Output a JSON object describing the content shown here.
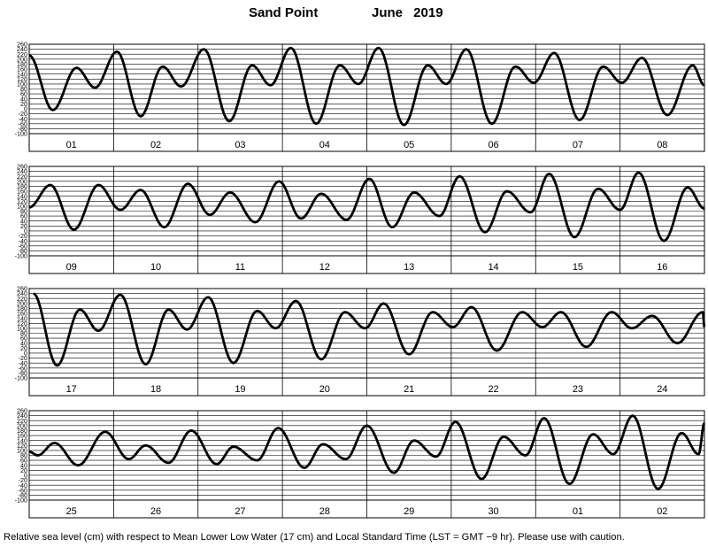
{
  "header": {
    "station": "Sand Point",
    "month_year": "June   2019"
  },
  "footer": {
    "caption": "Relative sea level (cm) with respect to Mean Lower Low Water (17 cm) and Local Standard Time (LST = GMT −9 hr). Please use with caution."
  },
  "chart_data": {
    "type": "line",
    "title": "Sand Point June 2019",
    "ylabel": "Relative sea level (cm)",
    "ylim": [
      -100,
      260
    ],
    "yticks": [
      260,
      240,
      220,
      200,
      180,
      160,
      140,
      120,
      100,
      80,
      60,
      40,
      20,
      0,
      -20,
      -40,
      -60,
      -80,
      -100
    ],
    "grid": true,
    "series_color": "#000000",
    "panels": [
      {
        "days": [
          "01",
          "02",
          "03",
          "04",
          "05",
          "06",
          "07",
          "08"
        ],
        "extremes": [
          {
            "day": 0.0,
            "value": 215
          },
          {
            "day": 0.28,
            "value": -5
          },
          {
            "day": 0.56,
            "value": 165
          },
          {
            "day": 0.78,
            "value": 85
          },
          {
            "day": 1.04,
            "value": 230
          },
          {
            "day": 1.32,
            "value": -30
          },
          {
            "day": 1.58,
            "value": 170
          },
          {
            "day": 1.8,
            "value": 90
          },
          {
            "day": 2.07,
            "value": 240
          },
          {
            "day": 2.37,
            "value": -50
          },
          {
            "day": 2.64,
            "value": 175
          },
          {
            "day": 2.86,
            "value": 95
          },
          {
            "day": 3.1,
            "value": 245
          },
          {
            "day": 3.4,
            "value": -60
          },
          {
            "day": 3.68,
            "value": 175
          },
          {
            "day": 3.9,
            "value": 100
          },
          {
            "day": 4.14,
            "value": 245
          },
          {
            "day": 4.44,
            "value": -65
          },
          {
            "day": 4.72,
            "value": 175
          },
          {
            "day": 4.94,
            "value": 100
          },
          {
            "day": 5.18,
            "value": 240
          },
          {
            "day": 5.48,
            "value": -60
          },
          {
            "day": 5.76,
            "value": 170
          },
          {
            "day": 5.98,
            "value": 105
          },
          {
            "day": 6.22,
            "value": 225
          },
          {
            "day": 6.52,
            "value": -45
          },
          {
            "day": 6.8,
            "value": 170
          },
          {
            "day": 7.02,
            "value": 105
          },
          {
            "day": 7.26,
            "value": 205
          },
          {
            "day": 7.56,
            "value": -25
          },
          {
            "day": 7.86,
            "value": 175
          },
          {
            "day": 8.0,
            "value": 95
          }
        ]
      },
      {
        "days": [
          "09",
          "10",
          "11",
          "12",
          "13",
          "14",
          "15",
          "16"
        ],
        "extremes": [
          {
            "day": 0.0,
            "value": 95
          },
          {
            "day": 0.25,
            "value": 185
          },
          {
            "day": 0.53,
            "value": 5
          },
          {
            "day": 0.82,
            "value": 185
          },
          {
            "day": 1.08,
            "value": 85
          },
          {
            "day": 1.32,
            "value": 165
          },
          {
            "day": 1.6,
            "value": 15
          },
          {
            "day": 1.88,
            "value": 190
          },
          {
            "day": 2.14,
            "value": 65
          },
          {
            "day": 2.38,
            "value": 155
          },
          {
            "day": 2.68,
            "value": 35
          },
          {
            "day": 2.96,
            "value": 200
          },
          {
            "day": 3.22,
            "value": 50
          },
          {
            "day": 3.46,
            "value": 150
          },
          {
            "day": 3.76,
            "value": 45
          },
          {
            "day": 4.03,
            "value": 210
          },
          {
            "day": 4.3,
            "value": 15
          },
          {
            "day": 4.56,
            "value": 155
          },
          {
            "day": 4.86,
            "value": 60
          },
          {
            "day": 5.1,
            "value": 220
          },
          {
            "day": 5.4,
            "value": -5
          },
          {
            "day": 5.66,
            "value": 160
          },
          {
            "day": 5.94,
            "value": 75
          },
          {
            "day": 6.16,
            "value": 230
          },
          {
            "day": 6.46,
            "value": -25
          },
          {
            "day": 6.74,
            "value": 170
          },
          {
            "day": 7.0,
            "value": 85
          },
          {
            "day": 7.22,
            "value": 235
          },
          {
            "day": 7.52,
            "value": -40
          },
          {
            "day": 7.8,
            "value": 175
          },
          {
            "day": 8.0,
            "value": 90
          }
        ]
      },
      {
        "days": [
          "17",
          "18",
          "19",
          "20",
          "21",
          "22",
          "23",
          "24"
        ],
        "extremes": [
          {
            "day": 0.05,
            "value": 240
          },
          {
            "day": 0.33,
            "value": -50
          },
          {
            "day": 0.6,
            "value": 175
          },
          {
            "day": 0.82,
            "value": 90
          },
          {
            "day": 1.08,
            "value": 235
          },
          {
            "day": 1.38,
            "value": -45
          },
          {
            "day": 1.65,
            "value": 175
          },
          {
            "day": 1.87,
            "value": 95
          },
          {
            "day": 2.12,
            "value": 225
          },
          {
            "day": 2.42,
            "value": -40
          },
          {
            "day": 2.7,
            "value": 170
          },
          {
            "day": 2.92,
            "value": 100
          },
          {
            "day": 3.16,
            "value": 210
          },
          {
            "day": 3.46,
            "value": -25
          },
          {
            "day": 3.74,
            "value": 165
          },
          {
            "day": 3.98,
            "value": 100
          },
          {
            "day": 4.2,
            "value": 200
          },
          {
            "day": 4.5,
            "value": -5
          },
          {
            "day": 4.78,
            "value": 165
          },
          {
            "day": 5.02,
            "value": 105
          },
          {
            "day": 5.24,
            "value": 185
          },
          {
            "day": 5.54,
            "value": 10
          },
          {
            "day": 5.84,
            "value": 165
          },
          {
            "day": 6.08,
            "value": 105
          },
          {
            "day": 6.3,
            "value": 165
          },
          {
            "day": 6.6,
            "value": 25
          },
          {
            "day": 6.9,
            "value": 165
          },
          {
            "day": 7.14,
            "value": 100
          },
          {
            "day": 7.38,
            "value": 150
          },
          {
            "day": 7.68,
            "value": 40
          },
          {
            "day": 7.98,
            "value": 165
          },
          {
            "day": 8.0,
            "value": 105
          }
        ]
      },
      {
        "days": [
          "25",
          "26",
          "27",
          "28",
          "29",
          "30",
          "01",
          "02"
        ],
        "extremes": [
          {
            "day": 0.0,
            "value": 95
          },
          {
            "day": 0.1,
            "value": 80
          },
          {
            "day": 0.3,
            "value": 130
          },
          {
            "day": 0.58,
            "value": 40
          },
          {
            "day": 0.9,
            "value": 175
          },
          {
            "day": 1.18,
            "value": 65
          },
          {
            "day": 1.38,
            "value": 120
          },
          {
            "day": 1.65,
            "value": 50
          },
          {
            "day": 1.92,
            "value": 180
          },
          {
            "day": 2.22,
            "value": 45
          },
          {
            "day": 2.42,
            "value": 115
          },
          {
            "day": 2.7,
            "value": 60
          },
          {
            "day": 2.95,
            "value": 190
          },
          {
            "day": 3.26,
            "value": 30
          },
          {
            "day": 3.48,
            "value": 125
          },
          {
            "day": 3.75,
            "value": 65
          },
          {
            "day": 4.0,
            "value": 200
          },
          {
            "day": 4.32,
            "value": 10
          },
          {
            "day": 4.56,
            "value": 140
          },
          {
            "day": 4.82,
            "value": 75
          },
          {
            "day": 5.05,
            "value": 215
          },
          {
            "day": 5.36,
            "value": -15
          },
          {
            "day": 5.62,
            "value": 155
          },
          {
            "day": 5.88,
            "value": 80
          },
          {
            "day": 6.1,
            "value": 230
          },
          {
            "day": 6.4,
            "value": -35
          },
          {
            "day": 6.68,
            "value": 165
          },
          {
            "day": 6.92,
            "value": 85
          },
          {
            "day": 7.15,
            "value": 240
          },
          {
            "day": 7.45,
            "value": -55
          },
          {
            "day": 7.73,
            "value": 170
          },
          {
            "day": 7.93,
            "value": 85
          },
          {
            "day": 8.0,
            "value": 210
          }
        ]
      }
    ]
  }
}
